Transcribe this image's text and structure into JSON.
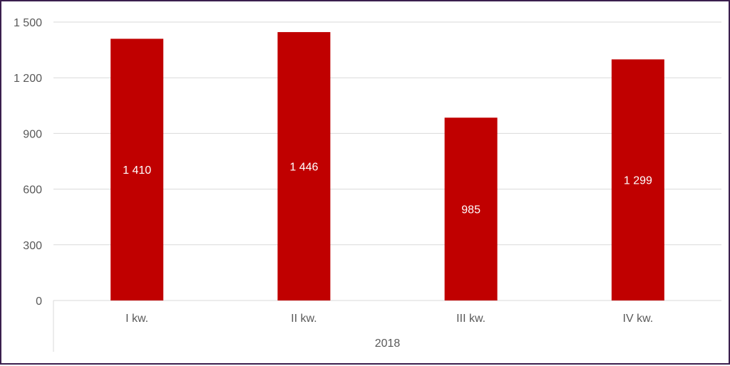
{
  "chart_data": {
    "type": "bar",
    "categories": [
      "I kw.",
      "II kw.",
      "III kw.",
      "IV kw."
    ],
    "group_label": "2018",
    "values": [
      1410,
      1446,
      985,
      1299
    ],
    "data_labels": [
      "1 410",
      "1 446",
      "985",
      "1 299"
    ],
    "ylim": [
      0,
      1500
    ],
    "yticks": [
      0,
      300,
      600,
      900,
      1200,
      1500
    ],
    "ytick_labels": [
      "0",
      "300",
      "600",
      "900",
      "1 200",
      "1 500"
    ],
    "grid": true,
    "legend": "none",
    "bar_color": "#c00000",
    "grid_color": "#d9d9d9",
    "frame_color": "#3b1f4e"
  }
}
